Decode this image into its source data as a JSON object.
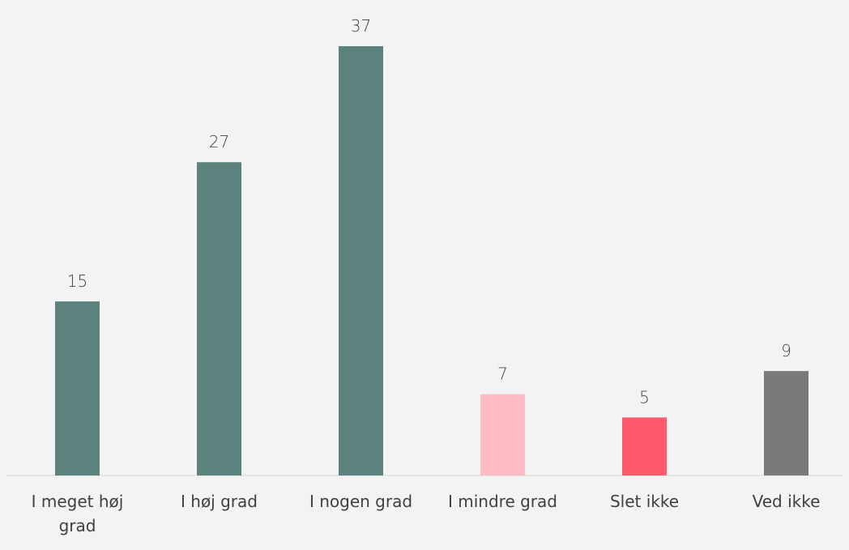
{
  "chart_data": {
    "type": "bar",
    "categories": [
      "I meget høj grad",
      "I høj grad",
      "I nogen grad",
      "I mindre grad",
      "Slet ikke",
      "Ved ikke"
    ],
    "values": [
      15,
      27,
      37,
      7,
      5,
      9
    ],
    "colors": [
      "#5b827d",
      "#5b827d",
      "#5b827d",
      "#ffbcc4",
      "#ff5a6c",
      "#7a7a7a"
    ]
  }
}
